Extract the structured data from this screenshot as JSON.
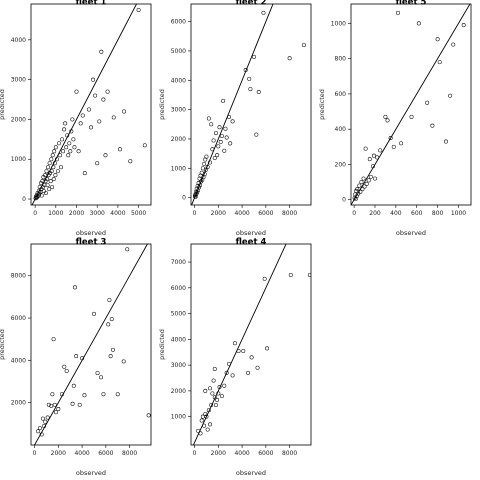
{
  "chart_data": [
    {
      "type": "scatter",
      "title": "fleet 1",
      "xlabel": "observed",
      "ylabel": "predicted",
      "xlim": [
        -200,
        5600
      ],
      "ylim": [
        -150,
        4900
      ],
      "xticks": [
        0,
        1000,
        2000,
        3000,
        4000,
        5000
      ],
      "yticks": [
        0,
        1000,
        2000,
        3000,
        4000
      ],
      "reference_line": "y = x",
      "points": [
        [
          20,
          20
        ],
        [
          40,
          60
        ],
        [
          60,
          30
        ],
        [
          80,
          100
        ],
        [
          100,
          50
        ],
        [
          120,
          150
        ],
        [
          150,
          80
        ],
        [
          180,
          200
        ],
        [
          200,
          120
        ],
        [
          220,
          300
        ],
        [
          250,
          180
        ],
        [
          280,
          400
        ],
        [
          300,
          250
        ],
        [
          320,
          90
        ],
        [
          350,
          450
        ],
        [
          380,
          300
        ],
        [
          400,
          550
        ],
        [
          420,
          200
        ],
        [
          450,
          350
        ],
        [
          480,
          600
        ],
        [
          500,
          450
        ],
        [
          520,
          150
        ],
        [
          550,
          700
        ],
        [
          580,
          500
        ],
        [
          600,
          350
        ],
        [
          620,
          800
        ],
        [
          650,
          600
        ],
        [
          680,
          250
        ],
        [
          700,
          900
        ],
        [
          720,
          650
        ],
        [
          750,
          450
        ],
        [
          780,
          1000
        ],
        [
          800,
          700
        ],
        [
          820,
          300
        ],
        [
          850,
          1100
        ],
        [
          880,
          800
        ],
        [
          900,
          500
        ],
        [
          920,
          1200
        ],
        [
          950,
          900
        ],
        [
          980,
          600
        ],
        [
          1000,
          1300
        ],
        [
          1050,
          1000
        ],
        [
          1100,
          700
        ],
        [
          1150,
          1400
        ],
        [
          1200,
          1100
        ],
        [
          1250,
          800
        ],
        [
          1300,
          1500
        ],
        [
          1350,
          1200
        ],
        [
          1400,
          1750
        ],
        [
          1450,
          1900
        ],
        [
          1500,
          1300
        ],
        [
          1550,
          1600
        ],
        [
          1600,
          1100
        ],
        [
          1650,
          1400
        ],
        [
          1700,
          1200
        ],
        [
          1750,
          1700
        ],
        [
          1800,
          2000
        ],
        [
          1850,
          1500
        ],
        [
          1900,
          1300
        ],
        [
          2000,
          2700
        ],
        [
          2100,
          1200
        ],
        [
          2200,
          1900
        ],
        [
          2300,
          2100
        ],
        [
          2400,
          650
        ],
        [
          2600,
          2250
        ],
        [
          2700,
          1800
        ],
        [
          2800,
          3000
        ],
        [
          2900,
          2600
        ],
        [
          3000,
          900
        ],
        [
          3100,
          1950
        ],
        [
          3200,
          3700
        ],
        [
          3300,
          2500
        ],
        [
          3400,
          1100
        ],
        [
          3500,
          2700
        ],
        [
          3800,
          2050
        ],
        [
          4100,
          1250
        ],
        [
          4300,
          2200
        ],
        [
          4600,
          950
        ],
        [
          5000,
          4750
        ],
        [
          5300,
          1350
        ]
      ]
    },
    {
      "type": "scatter",
      "title": "fleet 2",
      "xlabel": "observed",
      "ylabel": "predicted",
      "xlim": [
        -300,
        9800
      ],
      "ylim": [
        -250,
        6600
      ],
      "xticks": [
        0,
        2000,
        4000,
        6000,
        8000
      ],
      "yticks": [
        0,
        1000,
        2000,
        3000,
        4000,
        5000,
        6000
      ],
      "reference_line": "y = x",
      "points": [
        [
          30,
          50
        ],
        [
          60,
          100
        ],
        [
          90,
          30
        ],
        [
          120,
          200
        ],
        [
          150,
          120
        ],
        [
          180,
          300
        ],
        [
          220,
          180
        ],
        [
          260,
          400
        ],
        [
          300,
          250
        ],
        [
          340,
          500
        ],
        [
          380,
          350
        ],
        [
          420,
          650
        ],
        [
          460,
          420
        ],
        [
          500,
          750
        ],
        [
          550,
          550
        ],
        [
          600,
          850
        ],
        [
          650,
          600
        ],
        [
          700,
          1000
        ],
        [
          750,
          700
        ],
        [
          800,
          1150
        ],
        [
          850,
          800
        ],
        [
          900,
          1300
        ],
        [
          950,
          950
        ],
        [
          1000,
          1400
        ],
        [
          1100,
          1050
        ],
        [
          1200,
          2700
        ],
        [
          1300,
          1200
        ],
        [
          1400,
          2500
        ],
        [
          1500,
          1650
        ],
        [
          1600,
          1950
        ],
        [
          1700,
          1350
        ],
        [
          1800,
          2200
        ],
        [
          1900,
          1450
        ],
        [
          2000,
          1750
        ],
        [
          2100,
          2400
        ],
        [
          2200,
          1900
        ],
        [
          2300,
          2100
        ],
        [
          2400,
          3300
        ],
        [
          2500,
          1600
        ],
        [
          2600,
          2350
        ],
        [
          2700,
          2050
        ],
        [
          2900,
          2750
        ],
        [
          3000,
          1850
        ],
        [
          3200,
          2600
        ],
        [
          4300,
          4350
        ],
        [
          4600,
          4050
        ],
        [
          4700,
          3700
        ],
        [
          5000,
          4800
        ],
        [
          5200,
          2150
        ],
        [
          5400,
          3600
        ],
        [
          5800,
          6300
        ],
        [
          8000,
          4750
        ],
        [
          9200,
          5200
        ]
      ]
    },
    {
      "type": "scatter",
      "title": "fleet 5",
      "xlabel": "observed",
      "ylabel": "predicted",
      "xlim": [
        -30,
        1120
      ],
      "ylim": [
        -30,
        1110
      ],
      "xticks": [
        0,
        200,
        400,
        600,
        800,
        1000
      ],
      "yticks": [
        0,
        200,
        400,
        600,
        800,
        1000
      ],
      "reference_line": "y = x",
      "points": [
        [
          5,
          10
        ],
        [
          10,
          30
        ],
        [
          15,
          5
        ],
        [
          20,
          50
        ],
        [
          25,
          20
        ],
        [
          30,
          60
        ],
        [
          40,
          35
        ],
        [
          50,
          80
        ],
        [
          60,
          45
        ],
        [
          70,
          100
        ],
        [
          80,
          60
        ],
        [
          90,
          120
        ],
        [
          100,
          75
        ],
        [
          110,
          290
        ],
        [
          120,
          90
        ],
        [
          140,
          110
        ],
        [
          150,
          230
        ],
        [
          160,
          130
        ],
        [
          180,
          190
        ],
        [
          190,
          250
        ],
        [
          200,
          120
        ],
        [
          220,
          240
        ],
        [
          250,
          280
        ],
        [
          300,
          470
        ],
        [
          320,
          450
        ],
        [
          350,
          350
        ],
        [
          380,
          300
        ],
        [
          420,
          1060
        ],
        [
          450,
          320
        ],
        [
          550,
          470
        ],
        [
          620,
          1000
        ],
        [
          700,
          550
        ],
        [
          750,
          420
        ],
        [
          800,
          910
        ],
        [
          820,
          780
        ],
        [
          880,
          330
        ],
        [
          920,
          590
        ],
        [
          950,
          880
        ],
        [
          1050,
          990
        ]
      ]
    },
    {
      "type": "scatter",
      "title": "fleet 3",
      "xlabel": "observed",
      "ylabel": "predicted",
      "xlim": [
        -300,
        9800
      ],
      "ylim": [
        0,
        9500
      ],
      "xticks": [
        0,
        2000,
        4000,
        6000,
        8000
      ],
      "yticks": [
        2000,
        4000,
        6000,
        8000
      ],
      "reference_line": "y = x",
      "points": [
        [
          300,
          650
        ],
        [
          450,
          800
        ],
        [
          600,
          500
        ],
        [
          700,
          1250
        ],
        [
          800,
          900
        ],
        [
          900,
          1100
        ],
        [
          1100,
          1300
        ],
        [
          1200,
          1900
        ],
        [
          1400,
          1850
        ],
        [
          1500,
          2400
        ],
        [
          1600,
          5000
        ],
        [
          1700,
          1900
        ],
        [
          1800,
          1550
        ],
        [
          2000,
          1700
        ],
        [
          2300,
          2400
        ],
        [
          2500,
          3700
        ],
        [
          2700,
          3500
        ],
        [
          3200,
          1950
        ],
        [
          3300,
          2800
        ],
        [
          3400,
          7450
        ],
        [
          3500,
          4200
        ],
        [
          3800,
          1900
        ],
        [
          4000,
          4100
        ],
        [
          4200,
          2350
        ],
        [
          5000,
          6200
        ],
        [
          5300,
          3400
        ],
        [
          5600,
          3200
        ],
        [
          5800,
          2400
        ],
        [
          6200,
          5700
        ],
        [
          6300,
          6850
        ],
        [
          6400,
          4200
        ],
        [
          6500,
          5950
        ],
        [
          6600,
          4500
        ],
        [
          7000,
          2400
        ],
        [
          7500,
          3950
        ],
        [
          7800,
          9250
        ],
        [
          9600,
          1400
        ]
      ]
    },
    {
      "type": "scatter",
      "title": "fleet 4",
      "xlabel": "observed",
      "ylabel": "predicted",
      "xlim": [
        -300,
        9800
      ],
      "ylim": [
        -100,
        7700
      ],
      "xticks": [
        0,
        2000,
        4000,
        6000,
        8000
      ],
      "yticks": [
        1000,
        2000,
        3000,
        4000,
        5000,
        6000,
        7000
      ],
      "reference_line": "y = x",
      "points": [
        [
          300,
          450
        ],
        [
          500,
          350
        ],
        [
          600,
          850
        ],
        [
          700,
          1000
        ],
        [
          800,
          650
        ],
        [
          900,
          1100
        ],
        [
          1000,
          1000
        ],
        [
          1100,
          500
        ],
        [
          1200,
          1250
        ],
        [
          1300,
          700
        ],
        [
          1400,
          1450
        ],
        [
          1500,
          1900
        ],
        [
          1600,
          2400
        ],
        [
          1700,
          1750
        ],
        [
          1800,
          1450
        ],
        [
          1900,
          1650
        ],
        [
          2000,
          1900
        ],
        [
          2100,
          2150
        ],
        [
          2300,
          1800
        ],
        [
          2500,
          2200
        ],
        [
          2700,
          2700
        ],
        [
          2900,
          3050
        ],
        [
          3200,
          2600
        ],
        [
          3400,
          3850
        ],
        [
          3700,
          3550
        ],
        [
          4100,
          3550
        ],
        [
          4500,
          2700
        ],
        [
          4800,
          3300
        ],
        [
          5300,
          2900
        ],
        [
          5900,
          6350
        ],
        [
          6100,
          3650
        ],
        [
          8100,
          6500
        ],
        [
          9700,
          6500
        ],
        [
          1300,
          2100
        ],
        [
          900,
          2000
        ],
        [
          1700,
          2850
        ]
      ]
    }
  ]
}
